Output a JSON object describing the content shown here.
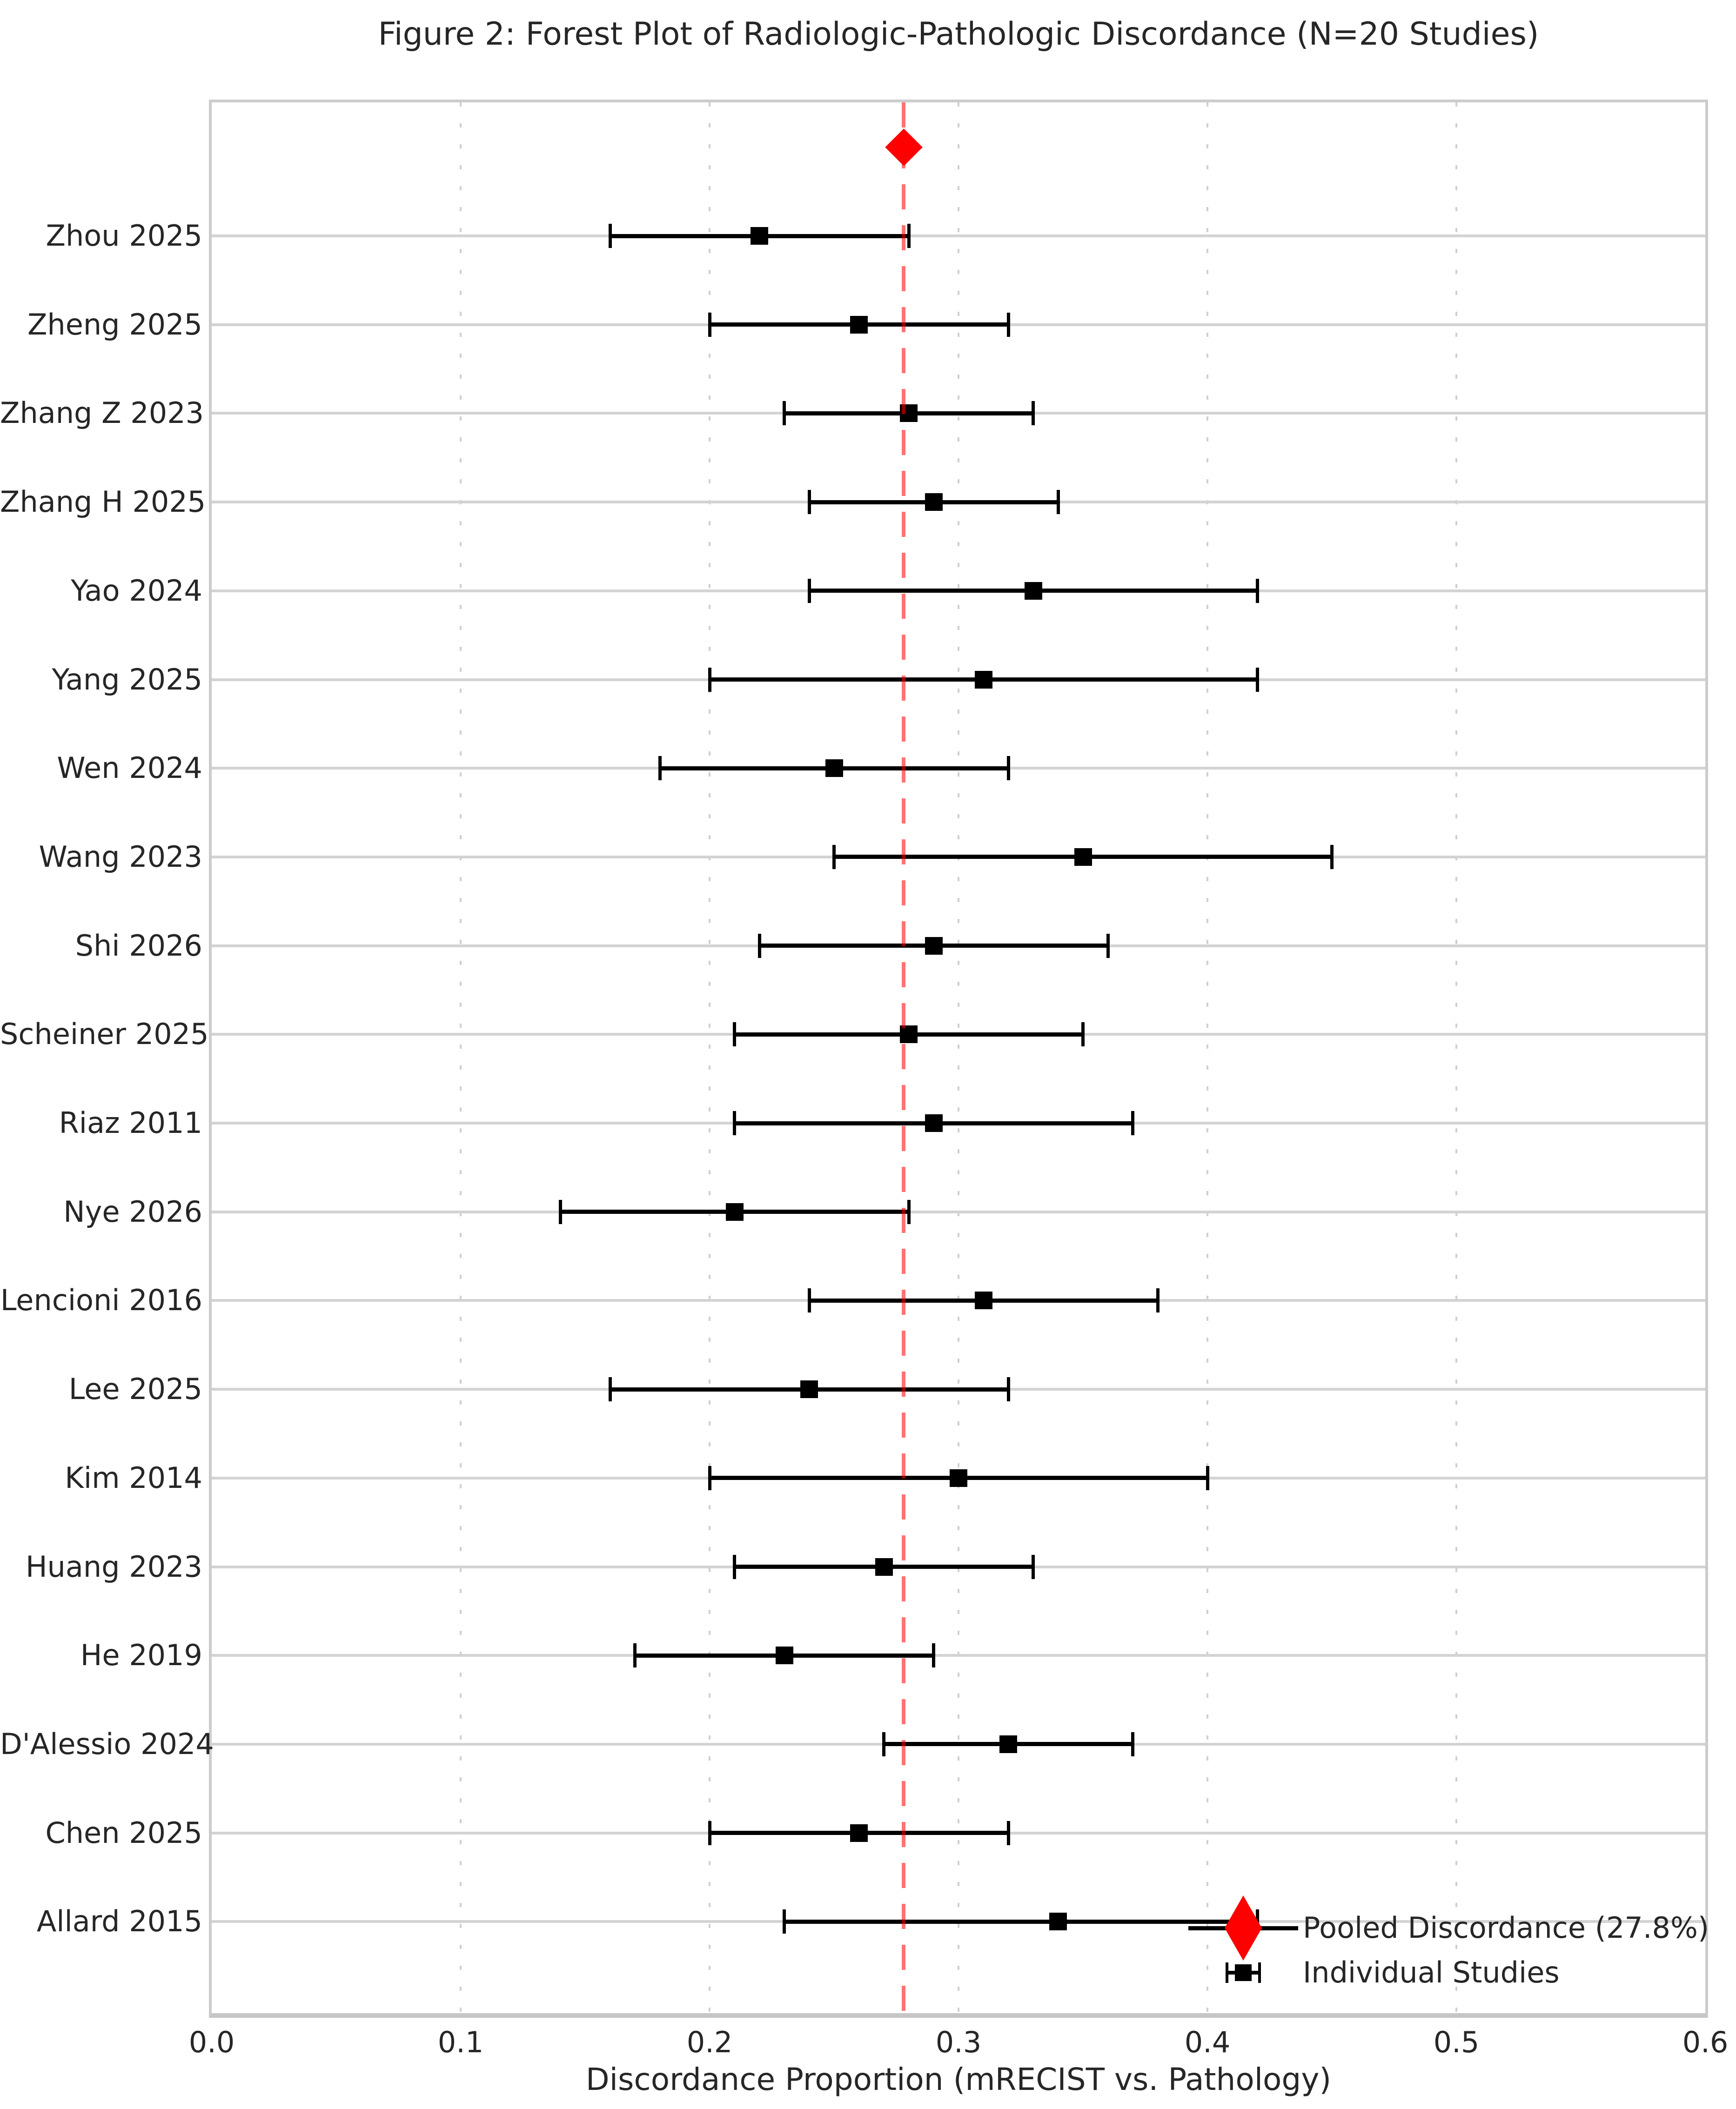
{
  "chart_data": {
    "type": "scatter",
    "variant": "forest-plot",
    "title": "Figure 2: Forest Plot of Radiologic-Pathologic Discordance (N=20 Studies)",
    "xlabel": "Discordance Proportion (mRECIST vs. Pathology)",
    "ylabel": "",
    "xlim": [
      0.0,
      0.6
    ],
    "xticks": [
      "0.0",
      "0.1",
      "0.2",
      "0.3",
      "0.4",
      "0.5",
      "0.6"
    ],
    "grid": {
      "vertical_dashed_at": [
        0.1,
        0.2,
        0.3,
        0.4,
        0.5
      ],
      "horizontal_row_lines": true
    },
    "legend_position": "lower right",
    "pooled": {
      "label": "Pooled Discordance (27.8%)",
      "value": 0.278,
      "percent_text": "27.8%"
    },
    "reference_line": {
      "value": 0.278,
      "style": "dashed",
      "color": "#ff7373"
    },
    "studies": [
      {
        "label": "Zhou 2025",
        "value": 0.22,
        "ci": [
          0.16,
          0.28
        ]
      },
      {
        "label": "Zheng 2025",
        "value": 0.26,
        "ci": [
          0.2,
          0.32
        ]
      },
      {
        "label": "Zhang Z 2023",
        "value": 0.28,
        "ci": [
          0.23,
          0.33
        ]
      },
      {
        "label": "Zhang H 2025",
        "value": 0.29,
        "ci": [
          0.24,
          0.34
        ]
      },
      {
        "label": "Yao 2024",
        "value": 0.33,
        "ci": [
          0.24,
          0.42
        ]
      },
      {
        "label": "Yang 2025",
        "value": 0.31,
        "ci": [
          0.2,
          0.42
        ]
      },
      {
        "label": "Wen 2024",
        "value": 0.25,
        "ci": [
          0.18,
          0.32
        ]
      },
      {
        "label": "Wang 2023",
        "value": 0.35,
        "ci": [
          0.25,
          0.45
        ]
      },
      {
        "label": "Shi 2026",
        "value": 0.29,
        "ci": [
          0.22,
          0.36
        ]
      },
      {
        "label": "Scheiner 2025",
        "value": 0.28,
        "ci": [
          0.21,
          0.35
        ]
      },
      {
        "label": "Riaz 2011",
        "value": 0.29,
        "ci": [
          0.21,
          0.37
        ]
      },
      {
        "label": "Nye 2026",
        "value": 0.21,
        "ci": [
          0.14,
          0.28
        ]
      },
      {
        "label": "Lencioni 2016",
        "value": 0.31,
        "ci": [
          0.24,
          0.38
        ]
      },
      {
        "label": "Lee 2025",
        "value": 0.24,
        "ci": [
          0.16,
          0.32
        ]
      },
      {
        "label": "Kim 2014",
        "value": 0.3,
        "ci": [
          0.2,
          0.4
        ]
      },
      {
        "label": "Huang 2023",
        "value": 0.27,
        "ci": [
          0.21,
          0.33
        ]
      },
      {
        "label": "He 2019",
        "value": 0.23,
        "ci": [
          0.17,
          0.29
        ]
      },
      {
        "label": "D'Alessio 2024",
        "value": 0.32,
        "ci": [
          0.27,
          0.37
        ]
      },
      {
        "label": "Chen 2025",
        "value": 0.26,
        "ci": [
          0.2,
          0.32
        ]
      },
      {
        "label": "Allard 2015",
        "value": 0.34,
        "ci": [
          0.23,
          0.42
        ]
      }
    ],
    "legend": [
      {
        "label": "Pooled Discordance (27.8%)",
        "marker": "red-diamond-line"
      },
      {
        "label": "Individual Studies",
        "marker": "black-square-errorbar"
      }
    ],
    "colors": {
      "pooled_marker": "#ff0000",
      "study_marker": "#000000",
      "reference_line": "#ff7373",
      "gridline": "#cfcfcf",
      "row_line": "#d3d3d3",
      "text": "#262626",
      "background": "#ffffff"
    }
  }
}
